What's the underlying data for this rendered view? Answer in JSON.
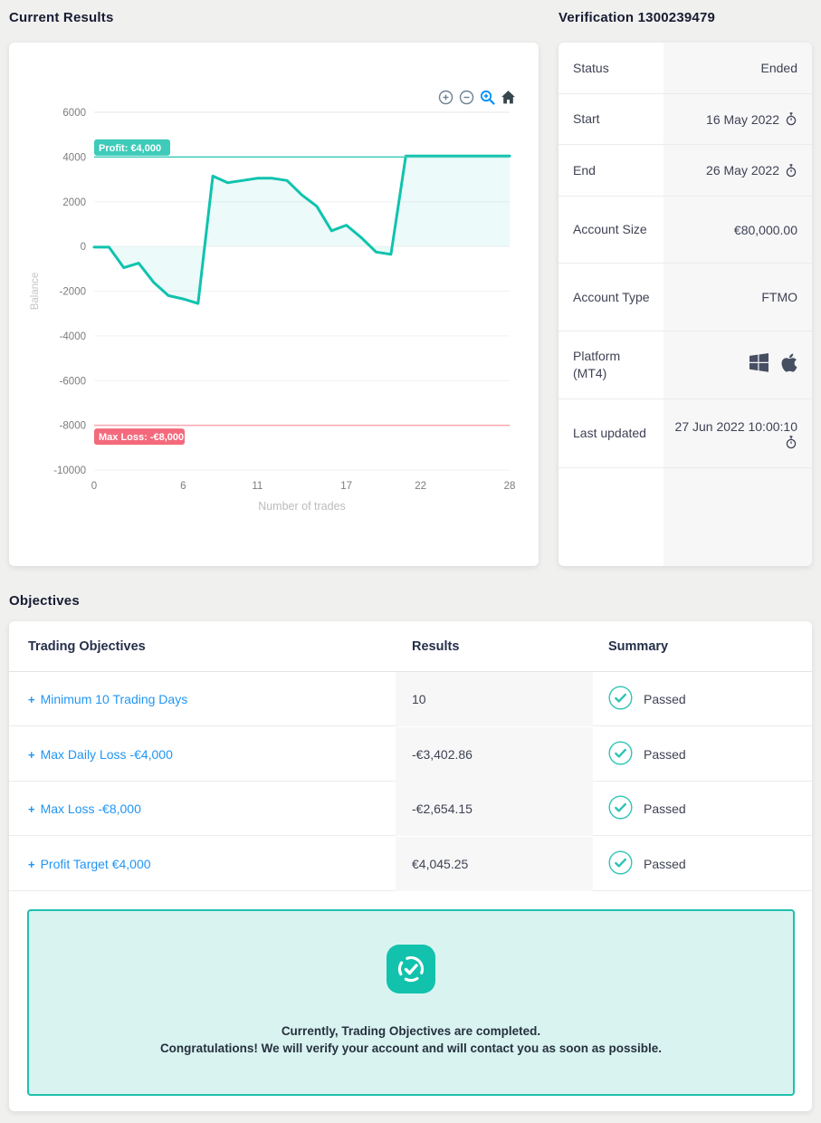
{
  "current_results": {
    "title": "Current Results",
    "toolbar": {
      "zoom_in": "zoom-in",
      "zoom_out": "zoom-out",
      "selection_zoom": "selection-zoom",
      "reset": "home"
    }
  },
  "chart_data": {
    "type": "area",
    "series_name": "Balance",
    "x": [
      0,
      1,
      2,
      3,
      4,
      5,
      6,
      7,
      8,
      9,
      10,
      11,
      12,
      13,
      14,
      15,
      16,
      17,
      18,
      19,
      20,
      21,
      22,
      23,
      24,
      25,
      26,
      27,
      28
    ],
    "values": [
      -30,
      -30,
      -950,
      -750,
      -1600,
      -2200,
      -2350,
      -2550,
      3150,
      2850,
      2950,
      3050,
      3050,
      2950,
      2300,
      1800,
      700,
      950,
      400,
      -250,
      -350,
      4045,
      4045,
      4045,
      4045,
      4045,
      4045,
      4045,
      4045
    ],
    "xlabel": "Number of trades",
    "ylabel": "Balance",
    "ylim": [
      -10000,
      6000
    ],
    "ytick_step": 2000,
    "xticks": [
      0,
      6,
      11,
      17,
      22,
      28
    ],
    "grid": true,
    "line_color": "#0fc3ae",
    "fill_color": "rgba(15,195,174,0.08)",
    "annotations": [
      {
        "label": "Profit: €4,000",
        "value": 4000,
        "badge_color": "#3ecbb9",
        "line_color": "#3ecbb9",
        "position": "above"
      },
      {
        "label": "Max Loss: -€8,000",
        "value": -8000,
        "badge_color": "#f4697c",
        "line_color": "#f8a7b0",
        "position": "below"
      }
    ]
  },
  "verification": {
    "title": "Verification 1300239479",
    "rows": [
      {
        "label": "Status",
        "value": "Ended"
      },
      {
        "label": "Start",
        "value": "16 May 2022",
        "icon": "stopwatch-icon"
      },
      {
        "label": "End",
        "value": "26 May 2022",
        "icon": "stopwatch-icon"
      },
      {
        "label": "Account Size",
        "value": "€80,000.00"
      },
      {
        "label": "Account Type",
        "value": "FTMO"
      },
      {
        "label": "Platform (MT4)",
        "value": "",
        "icons": [
          "windows-icon",
          "apple-icon"
        ]
      },
      {
        "label": "Last updated",
        "value": "27 Jun 2022 10:00:10",
        "icon": "stopwatch-icon"
      }
    ]
  },
  "objectives": {
    "title": "Objectives",
    "columns": {
      "objective": "Trading Objectives",
      "result": "Results",
      "summary": "Summary"
    },
    "rows": [
      {
        "plus": "+",
        "objective": "Minimum 10 Trading Days",
        "result": "10",
        "summary": "Passed"
      },
      {
        "plus": "+",
        "objective": "Max Daily Loss -€4,000",
        "result": "-€3,402.86",
        "summary": "Passed"
      },
      {
        "plus": "+",
        "objective": "Max Loss -€8,000",
        "result": "-€2,654.15",
        "summary": "Passed"
      },
      {
        "plus": "+",
        "objective": "Profit Target €4,000",
        "result": "€4,045.25",
        "summary": "Passed"
      }
    ],
    "message": {
      "line1": "Currently, Trading Objectives are completed.",
      "line2": "Congratulations! We will verify your account and will contact you as soon as possible."
    }
  },
  "colors": {
    "brand_teal": "#12c2ad",
    "link_blue": "#2196f3",
    "pass_teal": "#2ec4b6",
    "loss_pink": "#f4697c",
    "page_bg": "#f0f0ef"
  }
}
